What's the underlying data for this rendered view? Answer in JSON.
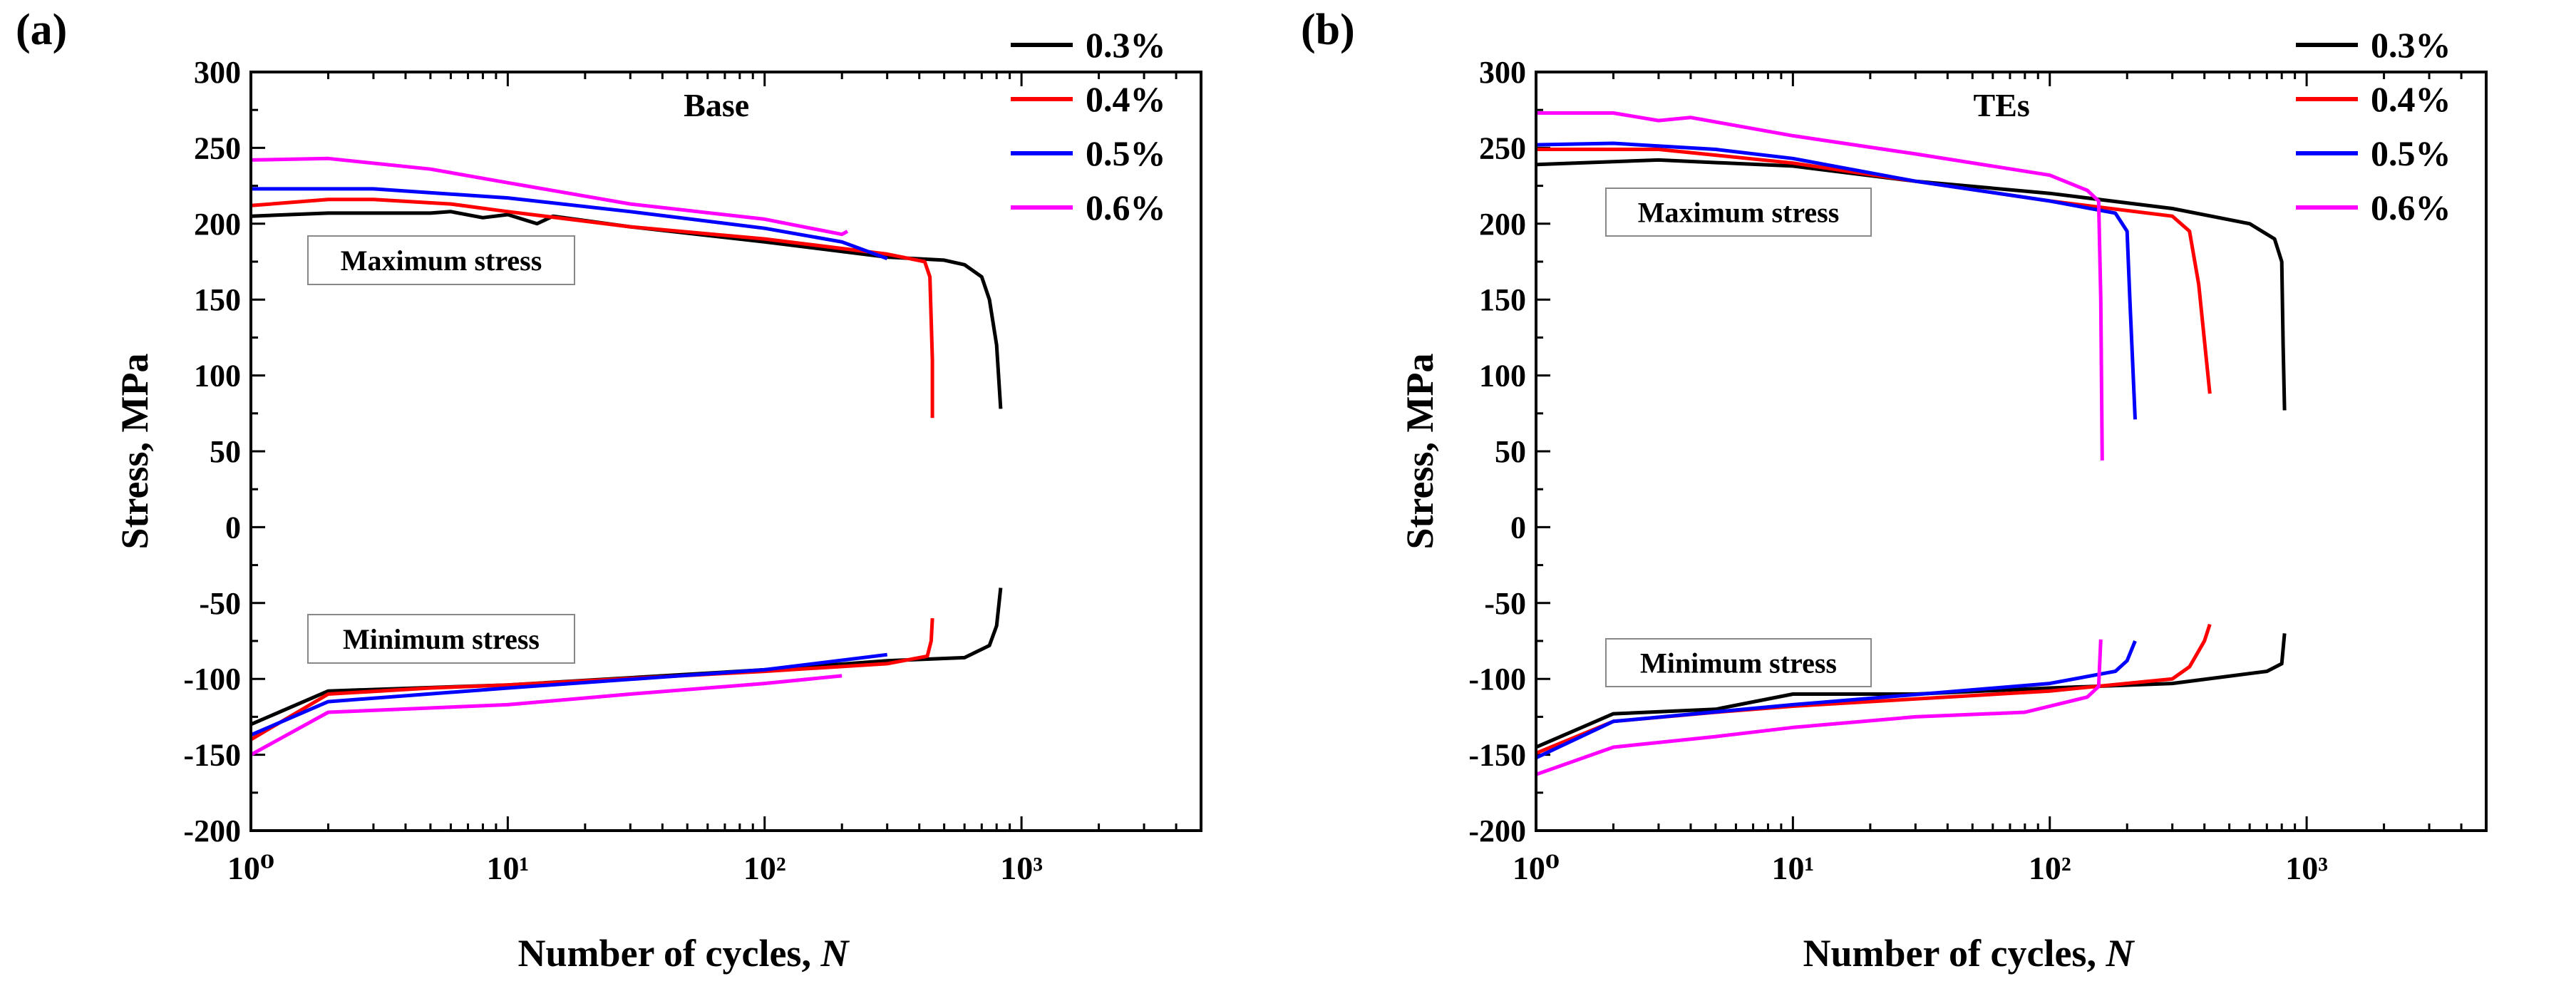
{
  "chart_data": [
    {
      "type": "line",
      "panel_label": "(a)",
      "title": "Base",
      "xlabel": "Number of cycles, ",
      "xlabel_italic": "N",
      "ylabel": "Stress, MPa",
      "xscale": "log",
      "xlim": [
        1,
        5000
      ],
      "ylim": [
        -200,
        300
      ],
      "xticks": [
        1,
        10,
        100,
        1000
      ],
      "xtick_labels": [
        "10⁰",
        "10¹",
        "10²",
        "10³"
      ],
      "yticks": [
        300,
        250,
        200,
        150,
        100,
        50,
        0,
        -50,
        -100,
        -150,
        -200
      ],
      "ytick_labels": [
        "300",
        "250",
        "200",
        "150",
        "100",
        "50",
        "0",
        "-50",
        "-100",
        "-150",
        "-200"
      ],
      "grid": false,
      "legend_position": "top-right",
      "annotations": [
        "Maximum stress",
        "Minimum stress"
      ],
      "series": [
        {
          "name": "0.3%",
          "color": "#000000",
          "max": [
            [
              1,
              205
            ],
            [
              2,
              207
            ],
            [
              5,
              207
            ],
            [
              6,
              208
            ],
            [
              8,
              204
            ],
            [
              10,
              206
            ],
            [
              13,
              200
            ],
            [
              15,
              205
            ],
            [
              30,
              198
            ],
            [
              100,
              188
            ],
            [
              300,
              178
            ],
            [
              500,
              176
            ],
            [
              600,
              173
            ],
            [
              700,
              165
            ],
            [
              750,
              150
            ],
            [
              800,
              120
            ],
            [
              830,
              78
            ]
          ],
          "min": [
            [
              1,
              -130
            ],
            [
              2,
              -108
            ],
            [
              10,
              -104
            ],
            [
              100,
              -94
            ],
            [
              300,
              -88
            ],
            [
              600,
              -86
            ],
            [
              750,
              -78
            ],
            [
              800,
              -65
            ],
            [
              830,
              -40
            ]
          ]
        },
        {
          "name": "0.4%",
          "color": "#ff0000",
          "max": [
            [
              1,
              212
            ],
            [
              2,
              216
            ],
            [
              3,
              216
            ],
            [
              6,
              213
            ],
            [
              10,
              208
            ],
            [
              30,
              198
            ],
            [
              100,
              190
            ],
            [
              300,
              180
            ],
            [
              420,
              175
            ],
            [
              440,
              165
            ],
            [
              450,
              110
            ],
            [
              450,
              72
            ]
          ],
          "min": [
            [
              1,
              -140
            ],
            [
              2,
              -110
            ],
            [
              5,
              -106
            ],
            [
              10,
              -104
            ],
            [
              100,
              -95
            ],
            [
              300,
              -90
            ],
            [
              430,
              -85
            ],
            [
              445,
              -75
            ],
            [
              450,
              -60
            ]
          ]
        },
        {
          "name": "0.5%",
          "color": "#0000ff",
          "max": [
            [
              1,
              223
            ],
            [
              3,
              223
            ],
            [
              10,
              217
            ],
            [
              30,
              208
            ],
            [
              100,
              197
            ],
            [
              200,
              188
            ],
            [
              300,
              177
            ]
          ],
          "min": [
            [
              1,
              -137
            ],
            [
              2,
              -115
            ],
            [
              10,
              -106
            ],
            [
              100,
              -94
            ],
            [
              300,
              -84
            ]
          ]
        },
        {
          "name": "0.6%",
          "color": "#ff00ff",
          "max": [
            [
              1,
              242
            ],
            [
              2,
              243
            ],
            [
              5,
              236
            ],
            [
              10,
              227
            ],
            [
              30,
              213
            ],
            [
              100,
              203
            ],
            [
              200,
              193
            ],
            [
              210,
              195
            ]
          ],
          "min": [
            [
              1,
              -150
            ],
            [
              2,
              -122
            ],
            [
              10,
              -117
            ],
            [
              30,
              -110
            ],
            [
              100,
              -103
            ],
            [
              200,
              -98
            ]
          ]
        }
      ]
    },
    {
      "type": "line",
      "panel_label": "(b)",
      "title": "TEs",
      "xlabel": "Number of cycles, ",
      "xlabel_italic": "N",
      "ylabel": "Stress, MPa",
      "xscale": "log",
      "xlim": [
        1,
        5000
      ],
      "ylim": [
        -200,
        300
      ],
      "xticks": [
        1,
        10,
        100,
        1000
      ],
      "xtick_labels": [
        "10⁰",
        "10¹",
        "10²",
        "10³"
      ],
      "yticks": [
        300,
        250,
        200,
        150,
        100,
        50,
        0,
        -50,
        -100,
        -150,
        -200
      ],
      "ytick_labels": [
        "300",
        "250",
        "200",
        "150",
        "100",
        "50",
        "0",
        "-50",
        "-100",
        "-150",
        "-200"
      ],
      "grid": false,
      "legend_position": "top-right",
      "annotations": [
        "Maximum stress",
        "Minimum stress"
      ],
      "series": [
        {
          "name": "0.3%",
          "color": "#000000",
          "max": [
            [
              1,
              239
            ],
            [
              3,
              242
            ],
            [
              10,
              238
            ],
            [
              30,
              228
            ],
            [
              100,
              220
            ],
            [
              300,
              210
            ],
            [
              600,
              200
            ],
            [
              750,
              190
            ],
            [
              800,
              175
            ],
            [
              810,
              120
            ],
            [
              820,
              77
            ]
          ],
          "min": [
            [
              1,
              -145
            ],
            [
              2,
              -123
            ],
            [
              5,
              -120
            ],
            [
              10,
              -110
            ],
            [
              30,
              -110
            ],
            [
              100,
              -106
            ],
            [
              300,
              -103
            ],
            [
              700,
              -95
            ],
            [
              800,
              -90
            ],
            [
              820,
              -70
            ]
          ]
        },
        {
          "name": "0.4%",
          "color": "#ff0000",
          "max": [
            [
              1,
              249
            ],
            [
              3,
              249
            ],
            [
              10,
              240
            ],
            [
              30,
              228
            ],
            [
              100,
              215
            ],
            [
              300,
              205
            ],
            [
              350,
              195
            ],
            [
              380,
              160
            ],
            [
              420,
              88
            ]
          ],
          "min": [
            [
              1,
              -149
            ],
            [
              2,
              -128
            ],
            [
              5,
              -122
            ],
            [
              10,
              -118
            ],
            [
              100,
              -108
            ],
            [
              300,
              -100
            ],
            [
              350,
              -92
            ],
            [
              400,
              -75
            ],
            [
              420,
              -64
            ]
          ]
        },
        {
          "name": "0.5%",
          "color": "#0000ff",
          "max": [
            [
              1,
              252
            ],
            [
              2,
              253
            ],
            [
              5,
              249
            ],
            [
              10,
              243
            ],
            [
              30,
              228
            ],
            [
              100,
              215
            ],
            [
              180,
              207
            ],
            [
              200,
              195
            ],
            [
              205,
              150
            ],
            [
              215,
              71
            ]
          ],
          "min": [
            [
              1,
              -152
            ],
            [
              2,
              -128
            ],
            [
              10,
              -117
            ],
            [
              100,
              -103
            ],
            [
              180,
              -95
            ],
            [
              200,
              -88
            ],
            [
              215,
              -75
            ]
          ]
        },
        {
          "name": "0.6%",
          "color": "#ff00ff",
          "max": [
            [
              1,
              273
            ],
            [
              2,
              273
            ],
            [
              3,
              268
            ],
            [
              4,
              270
            ],
            [
              10,
              258
            ],
            [
              30,
              246
            ],
            [
              100,
              232
            ],
            [
              140,
              222
            ],
            [
              155,
              215
            ],
            [
              158,
              150
            ],
            [
              160,
              44
            ]
          ],
          "min": [
            [
              1,
              -163
            ],
            [
              2,
              -145
            ],
            [
              5,
              -138
            ],
            [
              10,
              -132
            ],
            [
              30,
              -125
            ],
            [
              80,
              -122
            ],
            [
              140,
              -112
            ],
            [
              155,
              -105
            ],
            [
              158,
              -74
            ]
          ]
        }
      ]
    }
  ]
}
